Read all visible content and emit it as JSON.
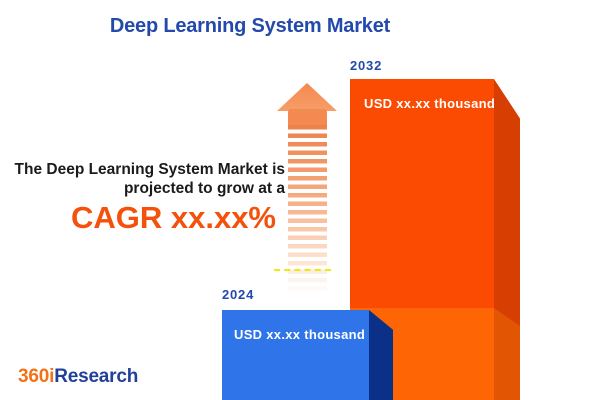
{
  "title": "Deep Learning System Market",
  "tagline": {
    "line1": "The Deep Learning System Market is",
    "line2": "projected to grow at a",
    "cagr": "CAGR xx.xx%"
  },
  "chart_data": {
    "type": "bar",
    "categories": [
      "2024",
      "2032"
    ],
    "values": [
      "xx.xx",
      "xx.xx"
    ],
    "value_unit": "USD thousand",
    "value_labels": [
      "USD xx.xx thousand",
      "USD xx.xx thousand"
    ],
    "relative_heights": [
      0.28,
      1.0
    ],
    "orientation": "vertical",
    "grid": "off",
    "legend": "none",
    "bar_colors": {
      "2024_front": "#2F74E8",
      "2024_side": "#0A3187",
      "2032_front_upper": "#FB4A01",
      "2032_front_lower": "#FD6505",
      "2032_side_upper": "#D63E02",
      "2032_side_lower": "#E25503"
    }
  },
  "arrow": {
    "meaning": "growth-upward",
    "head_color": "#F4884E",
    "stripe_color_top": "#EE8049",
    "stripe_color_bottom": "#FFFDFC",
    "dashed_line_color": "#EFEB04"
  },
  "colors": {
    "title_blue": "#2449AC",
    "cagr_orange": "#F4520C",
    "body_text": "#1b1b1b",
    "background": "#FFFFFF"
  },
  "logo": {
    "part1": "360i",
    "part2": "Research",
    "part1_color": "#F47216",
    "part2_color": "#21409A"
  }
}
